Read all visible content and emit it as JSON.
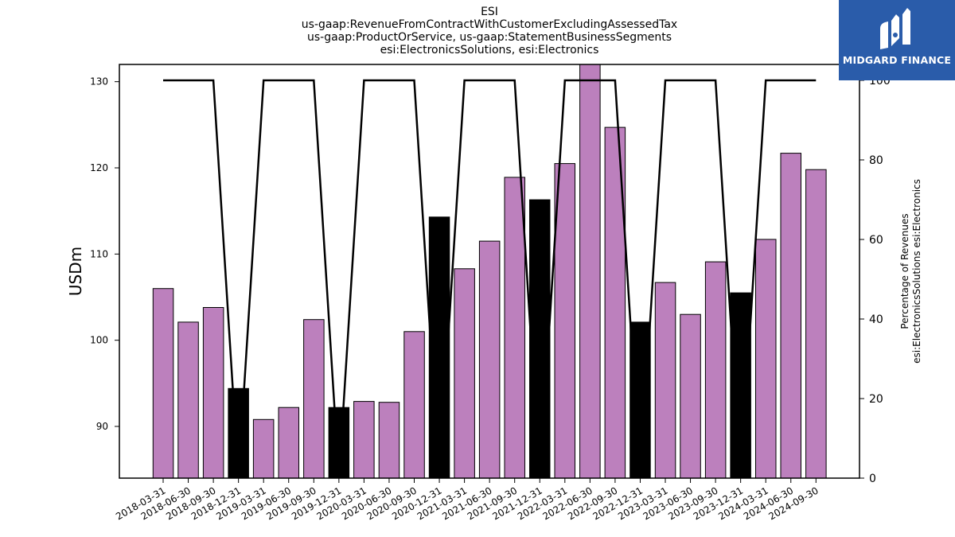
{
  "title_lines": [
    "ESI",
    "us-gaap:RevenueFromContractWithCustomerExcludingAssessedTax",
    "us-gaap:ProductOrService, us-gaap:StatementBusinessSegments",
    "esi:ElectronicsSolutions, esi:Electronics"
  ],
  "logo": {
    "text": "MIDGARD FINANCE",
    "icon": "midgard-logo-icon",
    "bg_color": "#2a5caa"
  },
  "chart_data": {
    "type": "bar",
    "categories": [
      "2018-03-31",
      "2018-06-30",
      "2018-09-30",
      "2018-12-31",
      "2019-03-31",
      "2019-06-30",
      "2019-09-30",
      "2019-12-31",
      "2020-03-31",
      "2020-06-30",
      "2020-09-30",
      "2020-12-31",
      "2021-03-31",
      "2021-06-30",
      "2021-09-30",
      "2021-12-31",
      "2022-03-31",
      "2022-06-30",
      "2022-09-30",
      "2022-12-31",
      "2023-03-31",
      "2023-06-30",
      "2023-09-30",
      "2023-12-31",
      "2024-03-31",
      "2024-06-30",
      "2024-09-30"
    ],
    "values": [
      106.0,
      102.1,
      103.8,
      94.4,
      90.8,
      92.2,
      102.4,
      92.2,
      92.9,
      92.8,
      101.0,
      114.3,
      108.3,
      111.5,
      118.9,
      116.3,
      120.5,
      132.2,
      124.7,
      102.1,
      106.7,
      103.0,
      109.1,
      105.5,
      111.7,
      121.7,
      119.8
    ],
    "bar_colors": [
      "#bc80bd",
      "#bc80bd",
      "#bc80bd",
      "#000000",
      "#bc80bd",
      "#bc80bd",
      "#bc80bd",
      "#000000",
      "#bc80bd",
      "#bc80bd",
      "#bc80bd",
      "#000000",
      "#bc80bd",
      "#bc80bd",
      "#bc80bd",
      "#000000",
      "#bc80bd",
      "#bc80bd",
      "#bc80bd",
      "#000000",
      "#bc80bd",
      "#bc80bd",
      "#bc80bd",
      "#000000",
      "#bc80bd",
      "#bc80bd",
      "#bc80bd"
    ],
    "percentage_line": [
      100,
      100,
      100,
      0,
      100,
      100,
      100,
      0,
      100,
      100,
      100,
      0,
      100,
      100,
      100,
      0,
      100,
      100,
      100,
      0,
      100,
      100,
      100,
      0,
      100,
      100,
      100
    ],
    "ylabel": "USDm",
    "ylabel_right": [
      "Percentage of Revenues",
      "esi:ElectronicsSolutions esi:Electronics"
    ],
    "ylim": [
      84,
      132
    ],
    "ylim_right": [
      0,
      104
    ],
    "yticks": [
      90,
      100,
      110,
      120,
      130
    ],
    "yticks_right": [
      0,
      20,
      40,
      60,
      80,
      100
    ],
    "grid": false
  }
}
